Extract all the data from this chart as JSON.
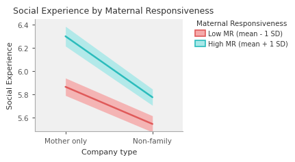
{
  "title": "Social Experience by Maternal Responsiveness",
  "xlabel": "Company type",
  "ylabel": "Social Experience",
  "xtick_labels": [
    "Mother only",
    "Non-family"
  ],
  "x_positions": [
    0,
    1
  ],
  "ylim": [
    5.48,
    6.45
  ],
  "yticks": [
    5.6,
    5.8,
    6.0,
    6.2,
    6.4
  ],
  "low_mr_line": [
    5.865,
    5.545
  ],
  "low_mr_upper": [
    5.94,
    5.615
  ],
  "low_mr_lower": [
    5.79,
    5.475
  ],
  "high_mr_line": [
    6.3,
    5.775
  ],
  "high_mr_upper": [
    6.385,
    5.845
  ],
  "high_mr_lower": [
    6.215,
    5.705
  ],
  "low_mr_line_color": "#E05A5A",
  "low_mr_fill_color": "#F5AAAA",
  "high_mr_line_color": "#2BBCBC",
  "high_mr_fill_color": "#A8E8E8",
  "legend_title": "Maternal Responsiveness",
  "legend_low": "Low MR (mean - 1 SD)",
  "legend_high": "High MR (mean + 1 SD)",
  "background_color": "#FFFFFF",
  "panel_background": "#F0F0F0",
  "title_fontsize": 9.0,
  "axis_label_fontsize": 8,
  "tick_fontsize": 7.5,
  "legend_fontsize": 7.0,
  "legend_title_fontsize": 7.5
}
